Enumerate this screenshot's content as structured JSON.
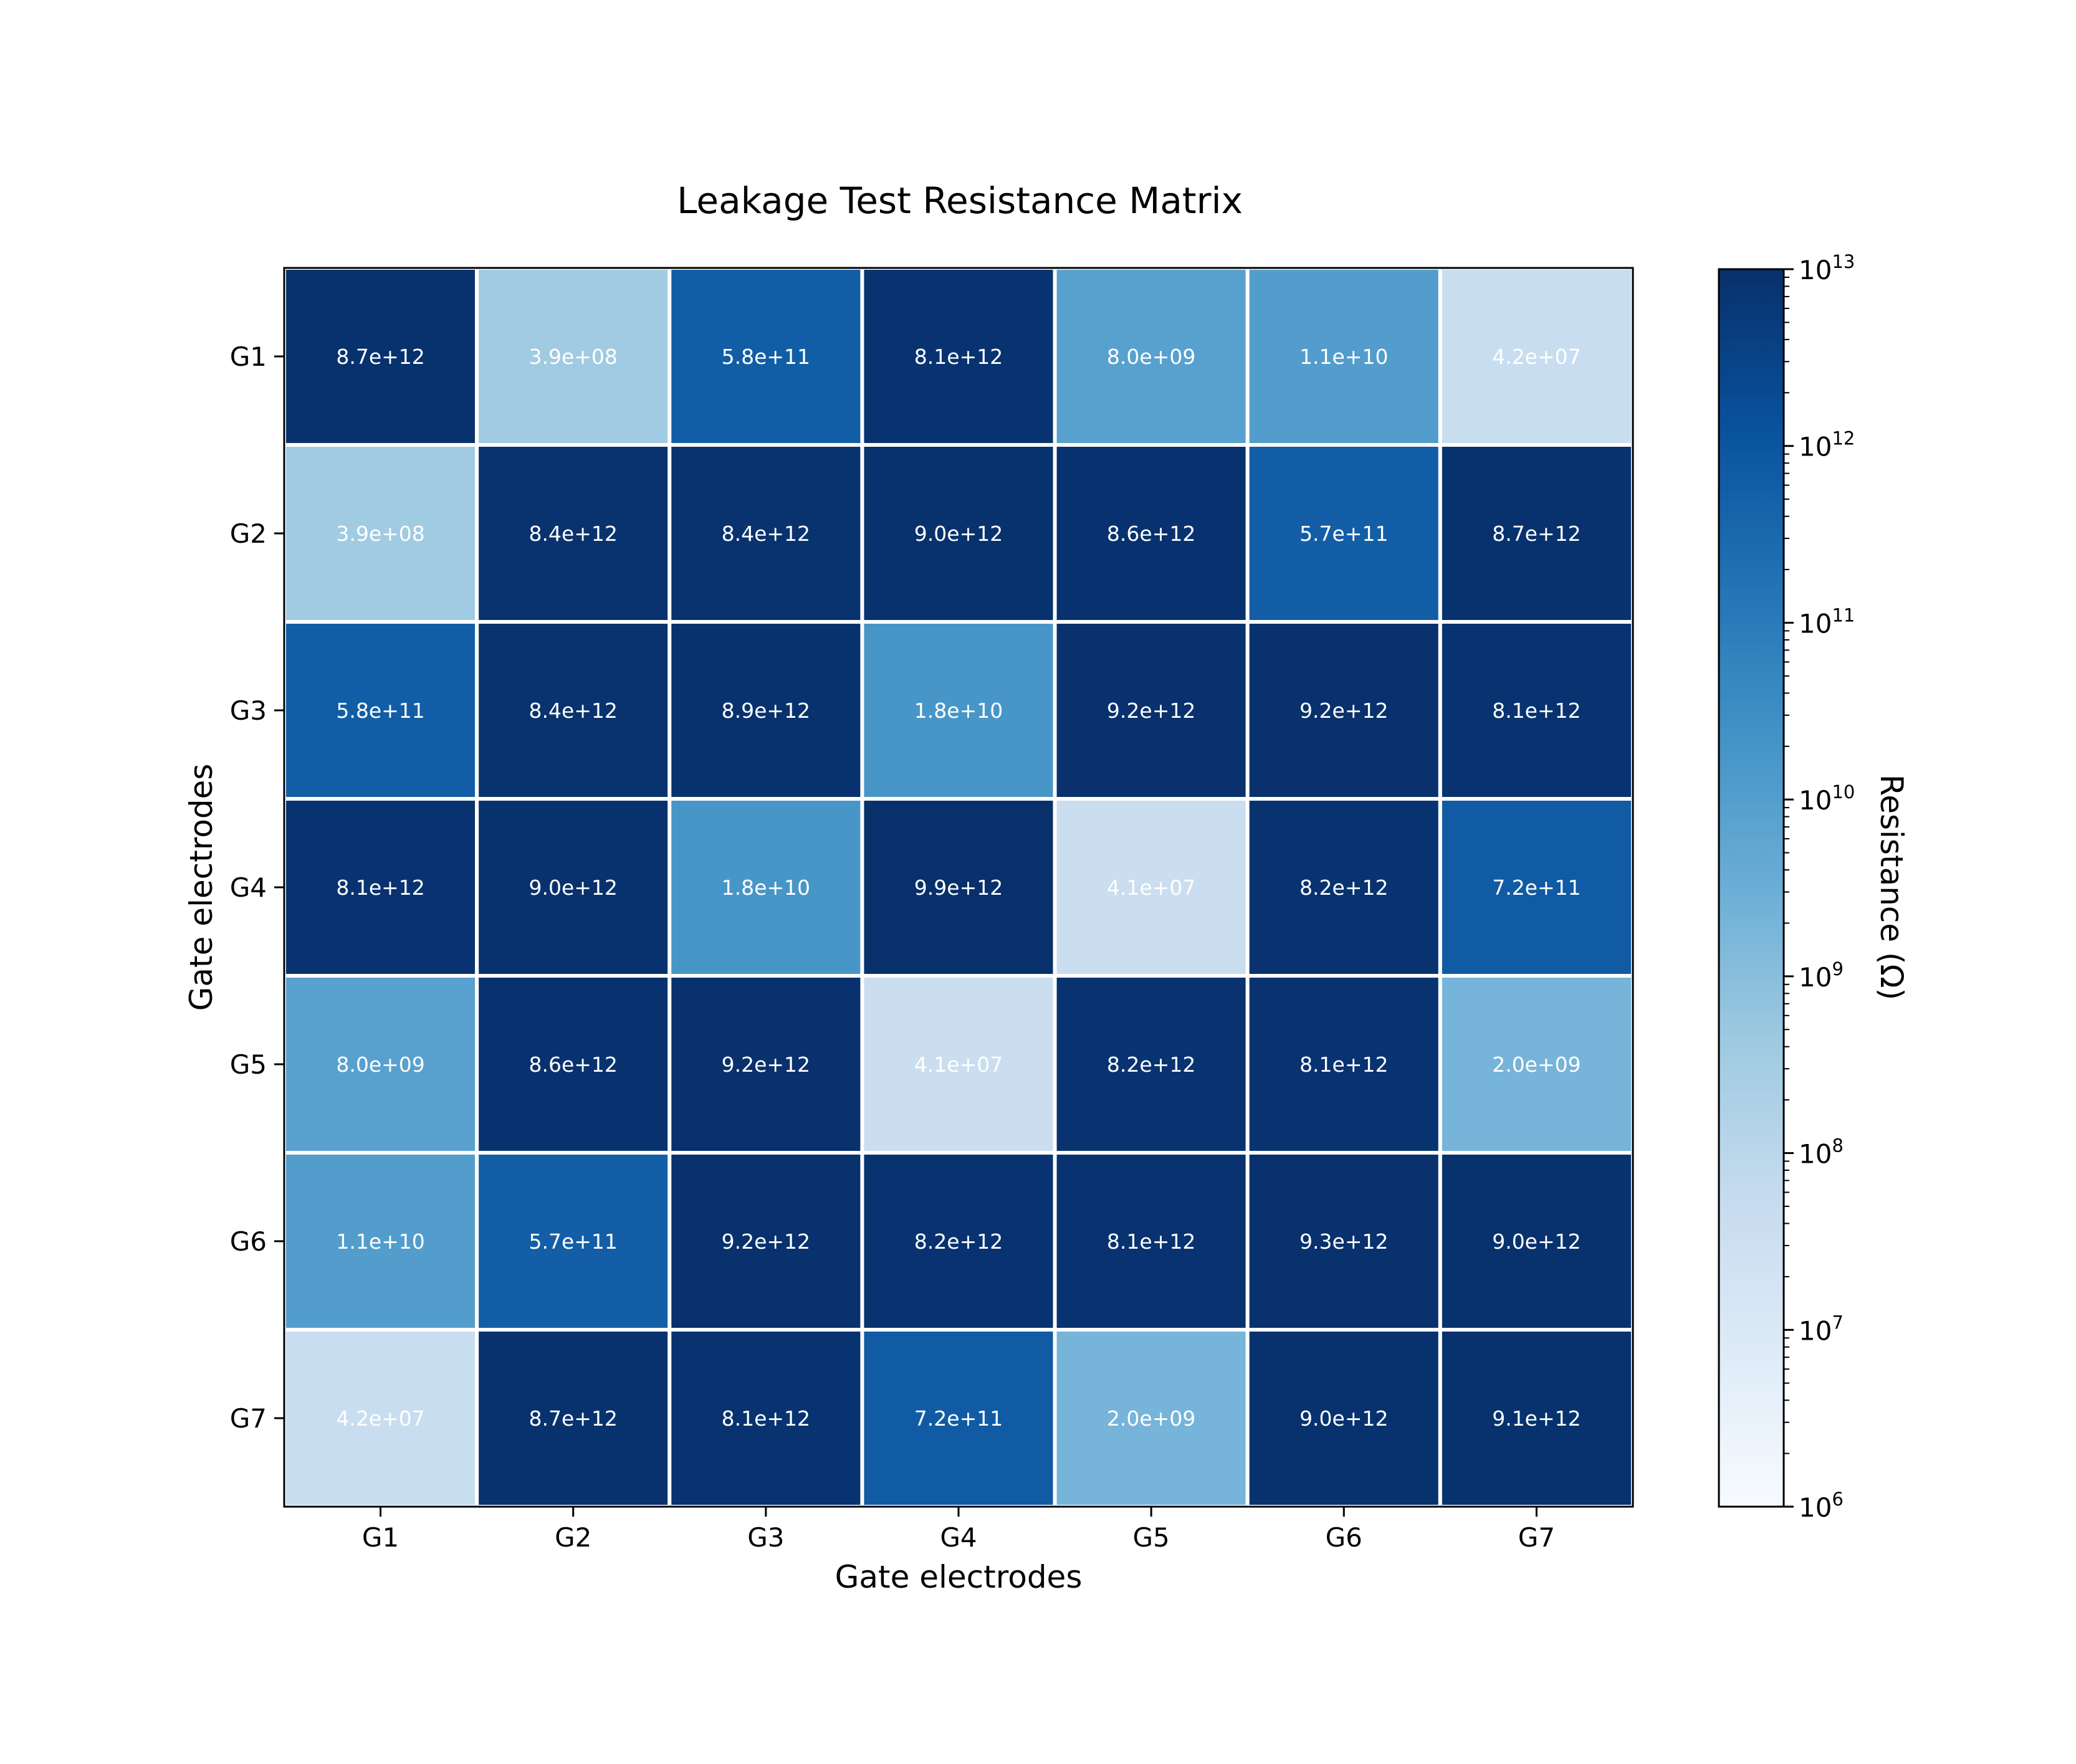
{
  "chart_data": {
    "type": "heatmap",
    "title": "Leakage Test Resistance Matrix",
    "xlabel": "Gate electrodes",
    "ylabel": "Gate electrodes",
    "x_categories": [
      "G1",
      "G2",
      "G3",
      "G4",
      "G5",
      "G6",
      "G7"
    ],
    "y_categories": [
      "G1",
      "G2",
      "G3",
      "G4",
      "G5",
      "G6",
      "G7"
    ],
    "values": [
      [
        8700000000000.0,
        390000000.0,
        580000000000.0,
        8100000000000.0,
        8000000000.0,
        11000000000.0,
        42000000.0
      ],
      [
        390000000.0,
        8400000000000.0,
        8400000000000.0,
        9000000000000.0,
        8600000000000.0,
        570000000000.0,
        8700000000000.0
      ],
      [
        580000000000.0,
        8400000000000.0,
        8900000000000.0,
        18000000000.0,
        9200000000000.0,
        9200000000000.0,
        8100000000000.0
      ],
      [
        8100000000000.0,
        9000000000000.0,
        18000000000.0,
        9900000000000.0,
        41000000.0,
        8200000000000.0,
        720000000000.0
      ],
      [
        8000000000.0,
        8600000000000.0,
        9200000000000.0,
        41000000.0,
        8200000000000.0,
        8100000000000.0,
        2000000000.0
      ],
      [
        11000000000.0,
        570000000000.0,
        9200000000000.0,
        8200000000000.0,
        8100000000000.0,
        9300000000000.0,
        9000000000000.0
      ],
      [
        42000000.0,
        8700000000000.0,
        8100000000000.0,
        720000000000.0,
        2000000000.0,
        9000000000000.0,
        9100000000000.0
      ]
    ],
    "cell_labels": [
      [
        "8.7e+12",
        "3.9e+08",
        "5.8e+11",
        "8.1e+12",
        "8.0e+09",
        "1.1e+10",
        "4.2e+07"
      ],
      [
        "3.9e+08",
        "8.4e+12",
        "8.4e+12",
        "9.0e+12",
        "8.6e+12",
        "5.7e+11",
        "8.7e+12"
      ],
      [
        "5.8e+11",
        "8.4e+12",
        "8.9e+12",
        "1.8e+10",
        "9.2e+12",
        "9.2e+12",
        "8.1e+12"
      ],
      [
        "8.1e+12",
        "9.0e+12",
        "1.8e+10",
        "9.9e+12",
        "4.1e+07",
        "8.2e+12",
        "7.2e+11"
      ],
      [
        "8.0e+09",
        "8.6e+12",
        "9.2e+12",
        "4.1e+07",
        "8.2e+12",
        "8.1e+12",
        "2.0e+09"
      ],
      [
        "1.1e+10",
        "5.7e+11",
        "9.2e+12",
        "8.2e+12",
        "8.1e+12",
        "9.3e+12",
        "9.0e+12"
      ],
      [
        "4.2e+07",
        "8.7e+12",
        "8.1e+12",
        "7.2e+11",
        "2.0e+09",
        "9.0e+12",
        "9.1e+12"
      ]
    ],
    "colorbar": {
      "label": "Resistance (Ω)",
      "scale": "log",
      "range": [
        1000000.0,
        10000000000000.0
      ],
      "tick_exponents": [
        6,
        7,
        8,
        9,
        10,
        11,
        12,
        13
      ],
      "tick_base": "10",
      "colormap": "Blues"
    },
    "grid": false
  }
}
